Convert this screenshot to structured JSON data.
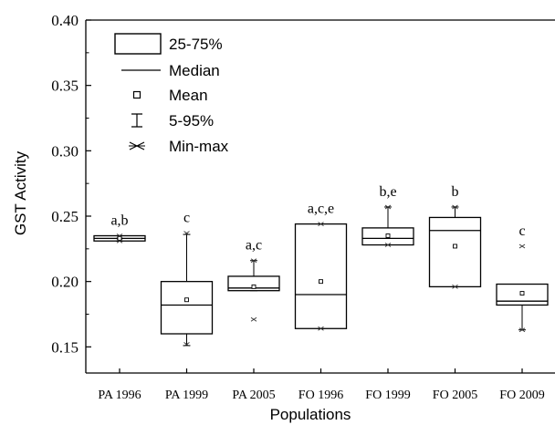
{
  "chart_data": {
    "type": "box",
    "xlabel": "Populations",
    "ylabel": "GST Activity",
    "ylim": [
      0.13,
      0.4
    ],
    "yticks": [
      "0.15",
      "0.20",
      "0.25",
      "0.30",
      "0.35",
      "0.40"
    ],
    "ytick_values": [
      0.15,
      0.2,
      0.25,
      0.3,
      0.35,
      0.4
    ],
    "categories": [
      "PA 1996",
      "PA 1999",
      "PA 2005",
      "FO 1996",
      "FO 1999",
      "FO 2005",
      "FO 2009"
    ],
    "boxes": [
      {
        "category": "PA 1996",
        "q1": 0.231,
        "median": 0.233,
        "q3": 0.235,
        "mean": 0.233,
        "whisker_low": 0.231,
        "whisker_high": 0.235,
        "min": 0.231,
        "max": 0.235,
        "letters": "a,b"
      },
      {
        "category": "PA 1999",
        "q1": 0.16,
        "median": 0.182,
        "q3": 0.2,
        "mean": 0.186,
        "whisker_low": 0.151,
        "whisker_high": 0.236,
        "min": 0.152,
        "max": 0.237,
        "letters": "c"
      },
      {
        "category": "PA 2005",
        "q1": 0.193,
        "median": 0.195,
        "q3": 0.204,
        "mean": 0.196,
        "whisker_low": 0.193,
        "whisker_high": 0.216,
        "min": 0.171,
        "max": 0.216,
        "letters": "a,c"
      },
      {
        "category": "FO 1996",
        "q1": 0.164,
        "median": 0.19,
        "q3": 0.244,
        "mean": 0.2,
        "whisker_low": 0.164,
        "whisker_high": 0.244,
        "min": 0.164,
        "max": 0.244,
        "letters": "a,c,e"
      },
      {
        "category": "FO 1999",
        "q1": 0.228,
        "median": 0.233,
        "q3": 0.241,
        "mean": 0.235,
        "whisker_low": 0.228,
        "whisker_high": 0.257,
        "min": 0.228,
        "max": 0.257,
        "letters": "b,e"
      },
      {
        "category": "FO 2005",
        "q1": 0.196,
        "median": 0.239,
        "q3": 0.249,
        "mean": 0.227,
        "whisker_low": 0.196,
        "whisker_high": 0.257,
        "min": 0.196,
        "max": 0.257,
        "letters": "b"
      },
      {
        "category": "FO 2009",
        "q1": 0.182,
        "median": 0.185,
        "q3": 0.198,
        "mean": 0.191,
        "whisker_low": 0.163,
        "whisker_high": 0.198,
        "min": 0.163,
        "max": 0.227,
        "letters": "c"
      }
    ],
    "legend": {
      "position": "top-left",
      "items": [
        {
          "symbol": "box",
          "label": "25-75%"
        },
        {
          "symbol": "median-line",
          "label": "Median"
        },
        {
          "symbol": "mean-square",
          "label": "Mean"
        },
        {
          "symbol": "whisker",
          "label": "5-95%"
        },
        {
          "symbol": "minmax-cross",
          "label": "Min-max"
        }
      ]
    },
    "grid": false
  }
}
